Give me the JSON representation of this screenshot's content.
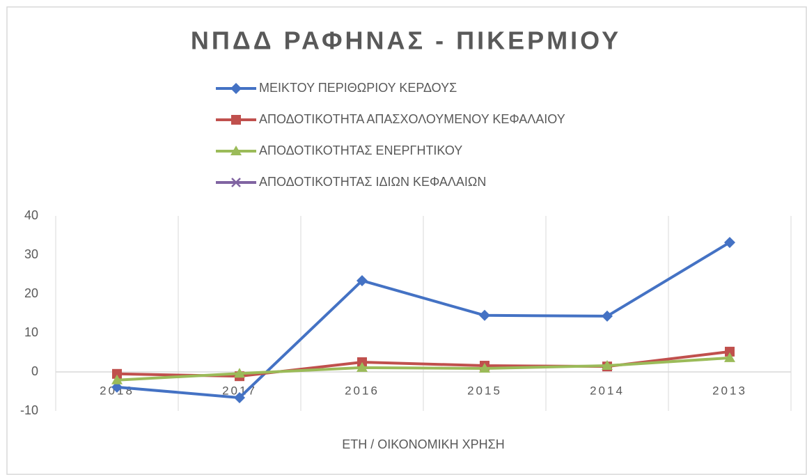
{
  "chart_data": {
    "type": "line",
    "title": "ΝΠΔΔ ΡΑΦΗΝΑΣ - ΠΙΚΕΡΜΙΟΥ",
    "x_label": "ΕΤΗ / ΟΙΚΟΝΟΜΙΚΗ ΧΡΗΣΗ",
    "categories": [
      "2018",
      "2017",
      "2016",
      "2015",
      "2014",
      "2013"
    ],
    "series": [
      {
        "name": "ΜΕΙΚΤΟΥ ΠΕΡΙΘΩΡΙΟΥ ΚΕΡΔΟΥΣ",
        "color": "#4472c4",
        "marker": "diamond",
        "values": [
          -3.9,
          -6.6,
          23.4,
          14.5,
          14.3,
          33.2
        ]
      },
      {
        "name": "ΑΠΟΔΟΤΙΚΟΤΗΤΑ ΑΠΑΣΧΟΛΟΥΜΕΝΟΥ ΚΕΦΑΛΑΙΟΥ",
        "color": "#c0504d",
        "marker": "square",
        "values": [
          -0.5,
          -1.1,
          2.5,
          1.6,
          1.4,
          5.2
        ]
      },
      {
        "name": "ΑΠΟΔΟΤΙΚΟΤΗΤΑΣ ΕΝΕΡΓΗΤΙΚΟΥ",
        "color": "#9bbb59",
        "marker": "triangle",
        "values": [
          -2.1,
          -0.4,
          1.1,
          0.9,
          1.6,
          3.6
        ]
      },
      {
        "name": "ΑΠΟΔΟΤΙΚΟΤΗΤΑΣ ΙΔΙΩΝ ΚΕΦΑΛΑΙΩΝ",
        "color": "#8064a2",
        "marker": "x",
        "values": [
          null,
          null,
          null,
          null,
          null,
          null
        ]
      }
    ],
    "ylim": [
      -10,
      40
    ],
    "yticks": [
      -10,
      0,
      10,
      20,
      30,
      40
    ],
    "grid": "x",
    "legend": "top"
  }
}
